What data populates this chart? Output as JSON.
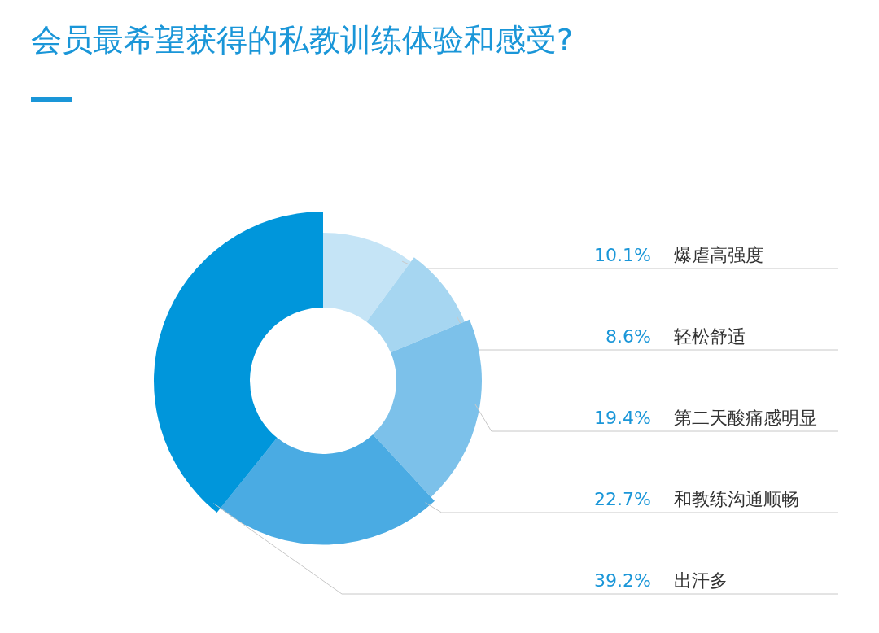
{
  "chart_data": {
    "type": "donut",
    "title": "会员最希望获得的私教训练体验和感受?",
    "categories": [
      "爆虐高强度",
      "轻松舒适",
      "第二天酸痛感明显",
      "和教练沟通顺畅",
      "出汗多"
    ],
    "values": [
      10.1,
      8.6,
      19.4,
      22.7,
      39.2
    ],
    "value_labels": [
      "10.1%",
      "8.6%",
      "19.4%",
      "22.7%",
      "39.2%"
    ],
    "colors": [
      "#c5e4f6",
      "#a6d6f1",
      "#7cc1ea",
      "#4aabe3",
      "#0096db"
    ],
    "data_labels": true
  }
}
